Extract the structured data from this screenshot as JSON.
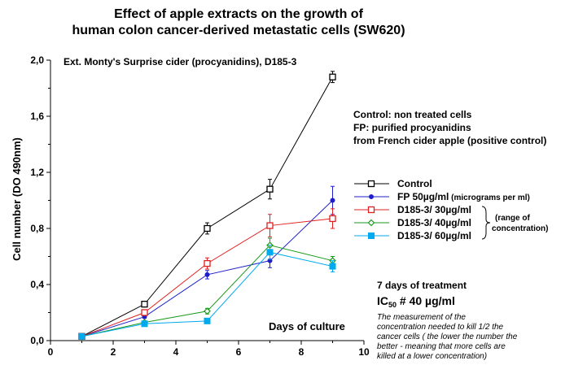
{
  "chart_data": {
    "type": "line",
    "title_line1": "Effect of apple extracts on the growth of",
    "title_line2": "human colon cancer-derived metastatic cells (SW620)",
    "subtitle": "Ext. Monty's Surprise cider (procyanidins), D185-3",
    "xlabel": "Days of culture",
    "ylabel": "Cell number (DO 490nm)",
    "xlim": [
      0,
      10
    ],
    "ylim": [
      0,
      2.0
    ],
    "xticks": [
      "0",
      "2",
      "4",
      "6",
      "8",
      "10"
    ],
    "yticks": [
      "0,0",
      "0,4",
      "0,8",
      "1,2",
      "1,6",
      "2,0"
    ],
    "x": [
      1,
      3,
      5,
      7,
      9
    ],
    "series": [
      {
        "name": "Control",
        "color": "#000000",
        "marker": "open-square",
        "values": [
          0.03,
          0.26,
          0.8,
          1.08,
          1.88
        ],
        "errors": [
          0.01,
          0.02,
          0.04,
          0.07,
          0.04
        ]
      },
      {
        "name": "FP 50µg/ml",
        "name_note": "(micrograms per ml)",
        "color": "#1e1ec8",
        "marker": "dot",
        "values": [
          0.03,
          0.17,
          0.47,
          0.57,
          1.0
        ],
        "errors": [
          0.01,
          0.01,
          0.03,
          0.05,
          0.1
        ]
      },
      {
        "name": "D185-3/ 30µg/ml",
        "color": "#e02020",
        "marker": "open-square",
        "values": [
          0.03,
          0.2,
          0.55,
          0.82,
          0.87
        ],
        "errors": [
          0.01,
          0.02,
          0.04,
          0.08,
          0.07
        ]
      },
      {
        "name": "D185-3/ 40µg/ml",
        "color": "#1a9a1a",
        "marker": "open-diamond",
        "values": [
          0.03,
          0.13,
          0.21,
          0.68,
          0.57
        ],
        "errors": [
          0.01,
          0.01,
          0.02,
          0.05,
          0.03
        ]
      },
      {
        "name": "D185-3/ 60µg/ml",
        "color": "#00aaee",
        "marker": "filled-square",
        "values": [
          0.03,
          0.12,
          0.14,
          0.63,
          0.53
        ],
        "errors": [
          0.01,
          0.01,
          0.01,
          0.05,
          0.04
        ]
      }
    ],
    "range_note_line1": "(range of",
    "range_note_line2": "concentration)",
    "legend_placement": "right",
    "grid": false
  },
  "notes": {
    "control_line1": "Control: non treated cells",
    "control_line2": "FP: purified procyanidins",
    "control_line3": "from French cider apple (positive control)",
    "treatment": "7 days of treatment",
    "ic50_prefix": "IC",
    "ic50_sub": "50",
    "ic50_suffix": " # 40 µg/ml",
    "explain": [
      "The measurement of the",
      "concentration needed to kill 1/2 the",
      "cancer cells ( the lower the number the",
      "better - meaning that more cells are",
      "killed at a lower concentration)"
    ]
  }
}
